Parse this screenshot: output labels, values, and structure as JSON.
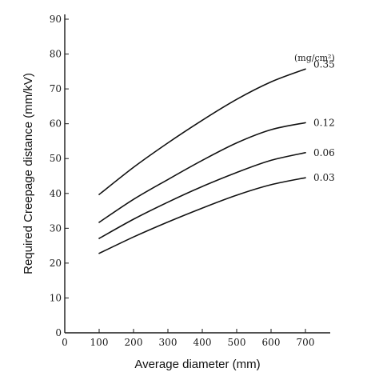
{
  "chart_data": {
    "type": "line",
    "xlabel": "Average diameter (mm)",
    "ylabel": "Required Creepage distance (mm/kV)",
    "xlim": [
      0,
      750
    ],
    "ylim": [
      0,
      90
    ],
    "xticks": [
      0,
      100,
      200,
      300,
      400,
      500,
      600,
      700
    ],
    "yticks": [
      0,
      10,
      20,
      30,
      40,
      50,
      60,
      70,
      80,
      90
    ],
    "grid": false,
    "legend_unit": "(mg/cm²)",
    "series": [
      {
        "name": "0.35",
        "x": [
          100,
          200,
          300,
          400,
          500,
          600,
          700
        ],
        "values": [
          39.7,
          47.5,
          54.5,
          61.0,
          67.0,
          72.0,
          75.7
        ]
      },
      {
        "name": "0.12",
        "x": [
          100,
          200,
          300,
          400,
          500,
          600,
          700
        ],
        "values": [
          31.7,
          38.3,
          44.0,
          49.5,
          54.5,
          58.3,
          60.3
        ]
      },
      {
        "name": "0.06",
        "x": [
          100,
          200,
          300,
          400,
          500,
          600,
          700
        ],
        "values": [
          27.1,
          32.6,
          37.5,
          42.0,
          46.0,
          49.5,
          51.7
        ]
      },
      {
        "name": "0.03",
        "x": [
          100,
          200,
          300,
          400,
          500,
          600,
          700
        ],
        "values": [
          22.8,
          27.5,
          31.8,
          35.8,
          39.5,
          42.5,
          44.5
        ]
      }
    ]
  }
}
